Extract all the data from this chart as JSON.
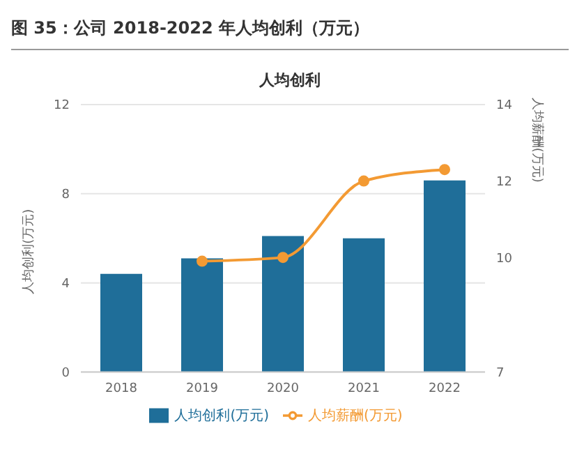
{
  "chart_data": {
    "type": "bar",
    "title": "图 35：公司 2018-2022 年人均创利（万元）",
    "subtitle": "人均创利",
    "ylabel": "人均创利(万元)",
    "y2label": "人均薪酬(万元)",
    "categories": [
      "2018",
      "2019",
      "2020",
      "2021",
      "2022"
    ],
    "series": [
      {
        "name": "人均创利(万元)",
        "color": "#1f6e99",
        "values": [
          4.4,
          5.1,
          6.1,
          6.0,
          8.6
        ]
      },
      {
        "name": "人均薪酬(万元)",
        "type": "line",
        "axis": "y2",
        "color": "#f39a33",
        "values": [
          null,
          9.9,
          10,
          12,
          12.3
        ]
      }
    ],
    "ylim": [
      0,
      12
    ],
    "yticks": [
      0,
      4,
      8,
      12
    ],
    "y2lim": [
      7,
      14
    ],
    "y2ticks": [
      7,
      10,
      12,
      14
    ],
    "grid": "y",
    "legend": "bottom",
    "marker": "circle"
  }
}
